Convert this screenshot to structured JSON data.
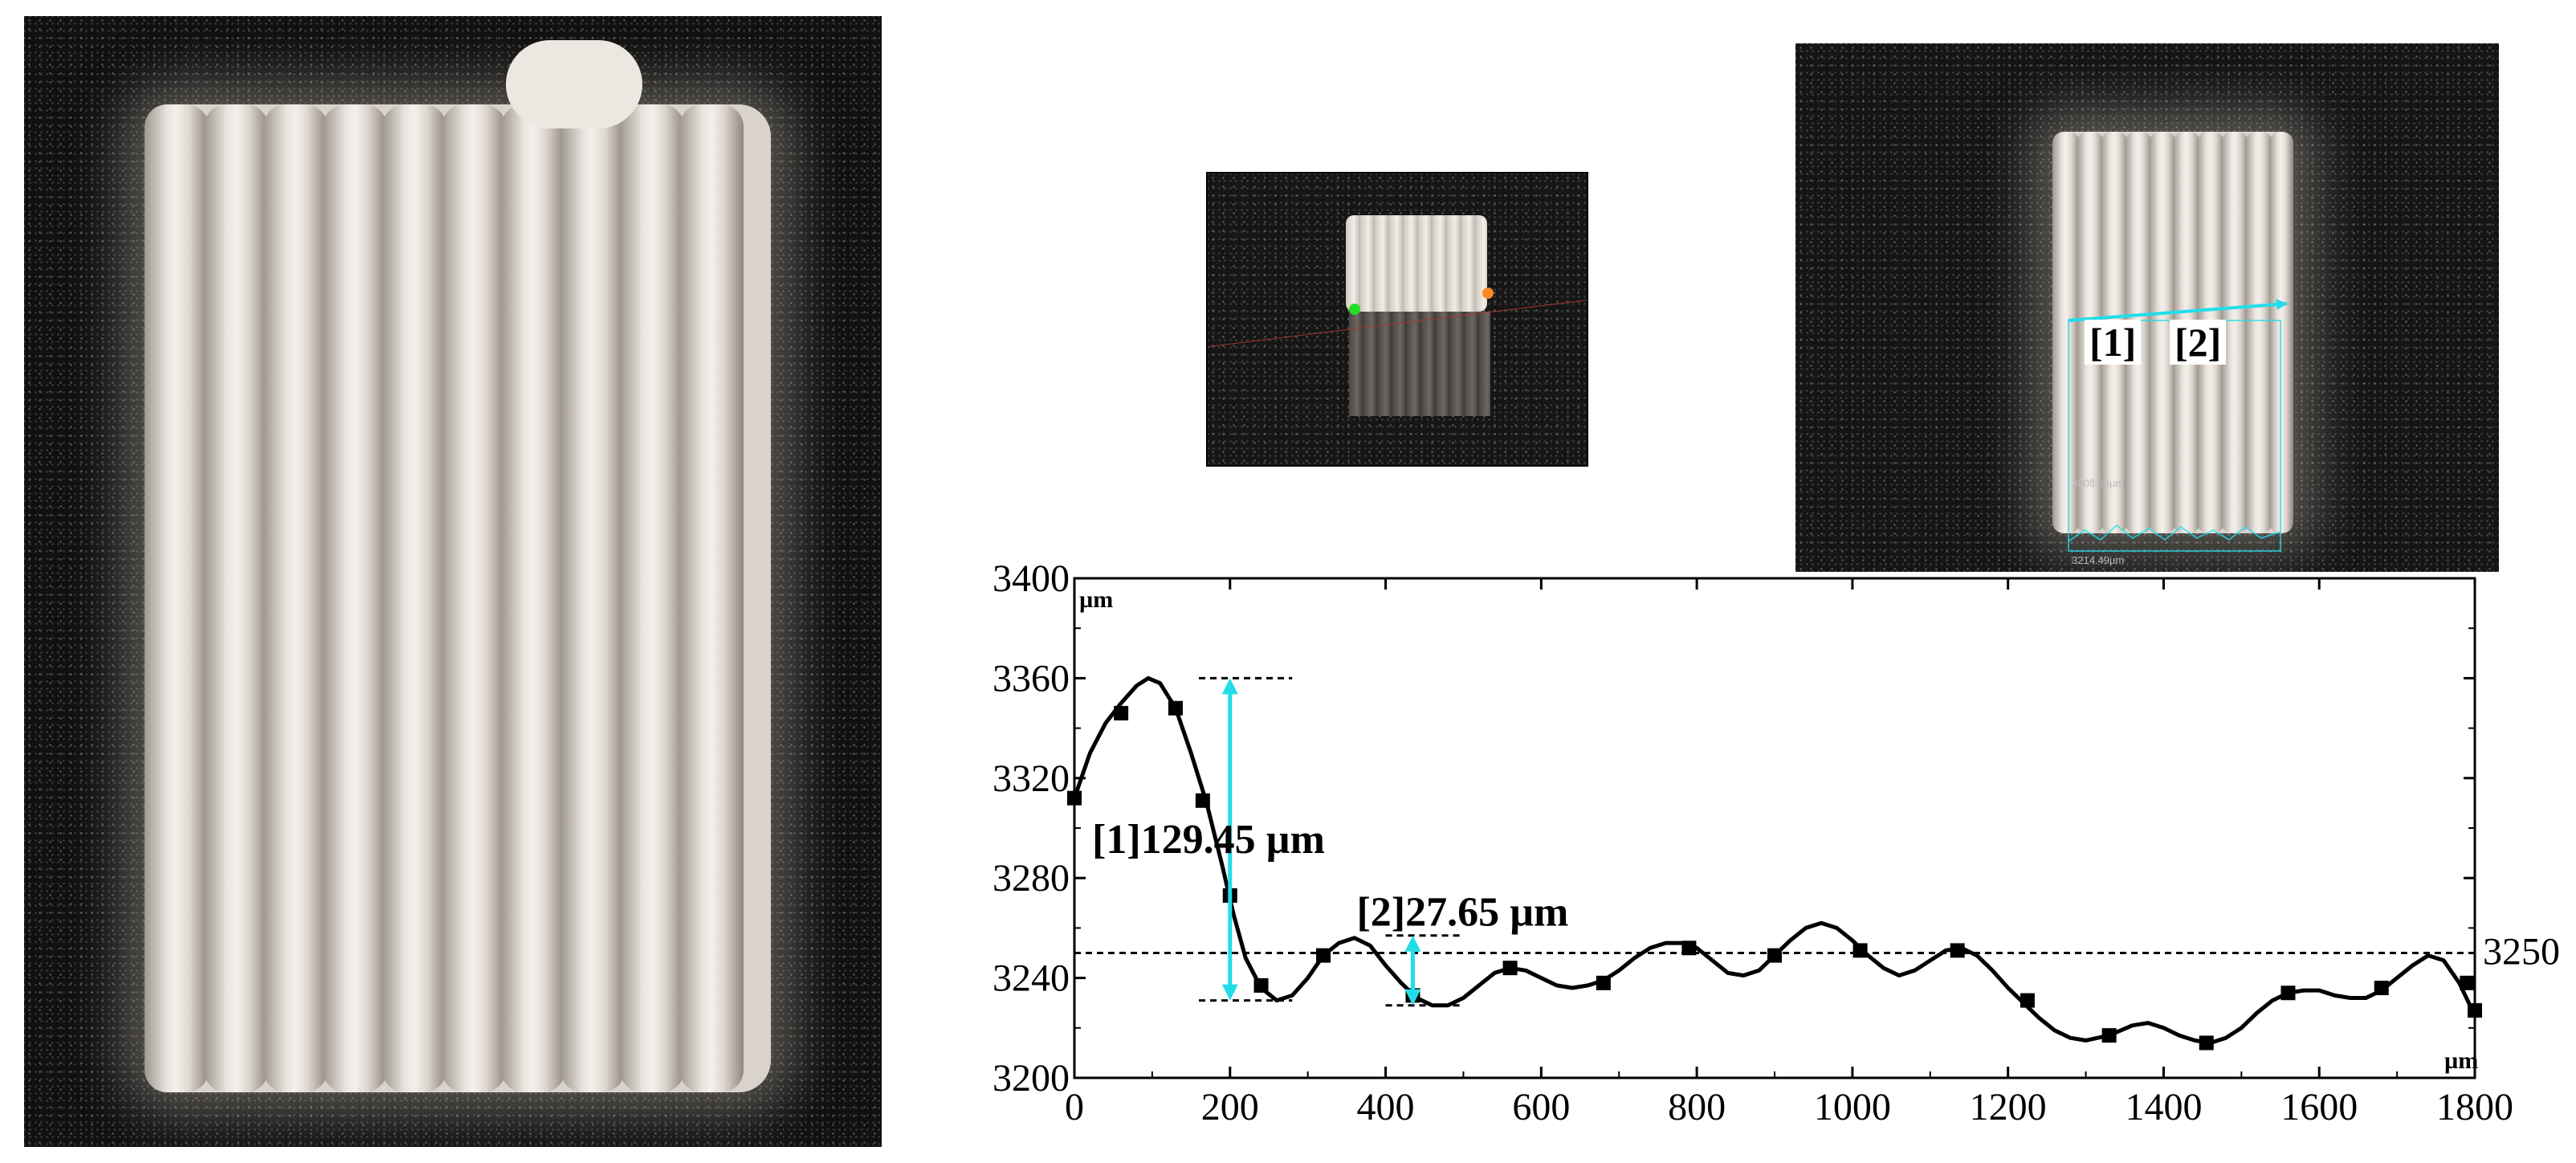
{
  "overlays": {
    "label_1": "[1]",
    "label_2": "[2]",
    "width_text": "3008.25µm",
    "length_text": "3214.49µm"
  },
  "colors": {
    "accent": "#22dde8",
    "reference_line": "#000000",
    "curve": "#000000"
  },
  "chart_data": {
    "type": "line",
    "xlabel": "µm",
    "ylabel": "µm",
    "xlim": [
      0,
      1800
    ],
    "ylim": [
      3200,
      3400
    ],
    "x_ticks": [
      0,
      200,
      400,
      600,
      800,
      1000,
      1200,
      1400,
      1600,
      1800
    ],
    "y_ticks": [
      3200,
      3240,
      3280,
      3320,
      3360,
      3400
    ],
    "grid": false,
    "series": [
      {
        "points": [
          [
            0,
            3312
          ],
          [
            20,
            3330
          ],
          [
            40,
            3342
          ],
          [
            60,
            3350
          ],
          [
            80,
            3357
          ],
          [
            95,
            3360
          ],
          [
            110,
            3358
          ],
          [
            130,
            3348
          ],
          [
            150,
            3330
          ],
          [
            170,
            3310
          ],
          [
            190,
            3285
          ],
          [
            205,
            3265
          ],
          [
            220,
            3248
          ],
          [
            240,
            3236
          ],
          [
            260,
            3231
          ],
          [
            280,
            3233
          ],
          [
            300,
            3240
          ],
          [
            320,
            3249
          ],
          [
            340,
            3254
          ],
          [
            360,
            3256
          ],
          [
            380,
            3253
          ],
          [
            400,
            3245
          ],
          [
            420,
            3238
          ],
          [
            440,
            3232
          ],
          [
            460,
            3229
          ],
          [
            480,
            3229
          ],
          [
            500,
            3232
          ],
          [
            520,
            3237
          ],
          [
            540,
            3242
          ],
          [
            560,
            3244
          ],
          [
            580,
            3243
          ],
          [
            600,
            3240
          ],
          [
            620,
            3237
          ],
          [
            640,
            3236
          ],
          [
            660,
            3237
          ],
          [
            680,
            3239
          ],
          [
            700,
            3243
          ],
          [
            720,
            3248
          ],
          [
            740,
            3252
          ],
          [
            760,
            3254
          ],
          [
            780,
            3254
          ],
          [
            800,
            3252
          ],
          [
            820,
            3247
          ],
          [
            840,
            3242
          ],
          [
            860,
            3241
          ],
          [
            880,
            3243
          ],
          [
            900,
            3249
          ],
          [
            920,
            3255
          ],
          [
            940,
            3260
          ],
          [
            960,
            3262
          ],
          [
            980,
            3260
          ],
          [
            1000,
            3255
          ],
          [
            1020,
            3249
          ],
          [
            1040,
            3244
          ],
          [
            1060,
            3241
          ],
          [
            1080,
            3243
          ],
          [
            1100,
            3247
          ],
          [
            1120,
            3251
          ],
          [
            1140,
            3252
          ],
          [
            1160,
            3249
          ],
          [
            1180,
            3243
          ],
          [
            1200,
            3236
          ],
          [
            1220,
            3230
          ],
          [
            1240,
            3224
          ],
          [
            1260,
            3219
          ],
          [
            1280,
            3216
          ],
          [
            1300,
            3215
          ],
          [
            1330,
            3217
          ],
          [
            1360,
            3221
          ],
          [
            1380,
            3222
          ],
          [
            1400,
            3220
          ],
          [
            1420,
            3217
          ],
          [
            1440,
            3215
          ],
          [
            1460,
            3214
          ],
          [
            1480,
            3216
          ],
          [
            1500,
            3220
          ],
          [
            1520,
            3226
          ],
          [
            1540,
            3231
          ],
          [
            1560,
            3234
          ],
          [
            1580,
            3235
          ],
          [
            1600,
            3235
          ],
          [
            1620,
            3233
          ],
          [
            1640,
            3232
          ],
          [
            1660,
            3232
          ],
          [
            1680,
            3235
          ],
          [
            1700,
            3240
          ],
          [
            1720,
            3245
          ],
          [
            1740,
            3249
          ],
          [
            1760,
            3247
          ],
          [
            1780,
            3238
          ],
          [
            1800,
            3225
          ]
        ],
        "markers": [
          [
            0,
            3312
          ],
          [
            60,
            3346
          ],
          [
            130,
            3348
          ],
          [
            165,
            3311
          ],
          [
            200,
            3273
          ],
          [
            240,
            3237
          ],
          [
            320,
            3249
          ],
          [
            435,
            3233
          ],
          [
            560,
            3244
          ],
          [
            680,
            3238
          ],
          [
            790,
            3252
          ],
          [
            900,
            3249
          ],
          [
            1010,
            3251
          ],
          [
            1135,
            3251
          ],
          [
            1225,
            3231
          ],
          [
            1330,
            3217
          ],
          [
            1455,
            3214
          ],
          [
            1560,
            3234
          ],
          [
            1680,
            3236
          ],
          [
            1790,
            3238
          ],
          [
            1800,
            3227
          ]
        ]
      }
    ],
    "reference_line": {
      "y": 3250,
      "label": "3250"
    },
    "annotations": [
      {
        "label": "[1]129.45 µm",
        "x": 200,
        "y_top": 3360,
        "y_bottom": 3231,
        "x_from": 160,
        "x_to": 280
      },
      {
        "label": "[2]27.65 µm",
        "x": 435,
        "y_top": 3257,
        "y_bottom": 3229,
        "x_from": 400,
        "x_to": 500
      }
    ]
  }
}
